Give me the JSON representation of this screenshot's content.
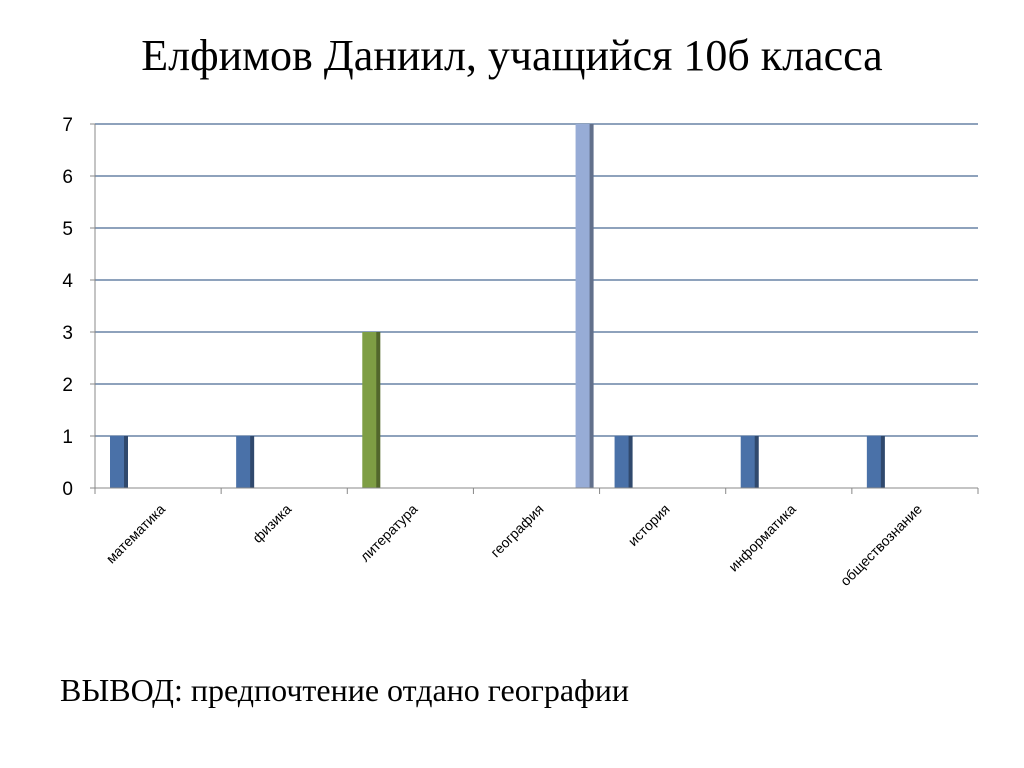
{
  "slide": {
    "title": "Елфимов Даниил, учащийся 10б класса",
    "conclusion": "ВЫВОД: предпочтение отдано географии"
  },
  "chart_data": {
    "type": "bar",
    "title": "",
    "xlabel": "",
    "ylabel": "",
    "ylim": [
      0,
      7
    ],
    "yticks": [
      0,
      1,
      2,
      3,
      4,
      5,
      6,
      7
    ],
    "grid": true,
    "categories": [
      "математика",
      "физика",
      "литература",
      "география",
      "история",
      "информатика",
      "обществознание"
    ],
    "values": [
      1,
      1,
      3,
      7,
      1,
      1,
      1
    ],
    "colors": [
      "#4A71A8",
      "#4A71A8",
      "#7E9E44",
      "#97ACD6",
      "#4A71A8",
      "#4A71A8",
      "#4A71A8"
    ],
    "bar_offset_category": {
      "index": 3,
      "between": [
        "география",
        "история"
      ]
    }
  }
}
